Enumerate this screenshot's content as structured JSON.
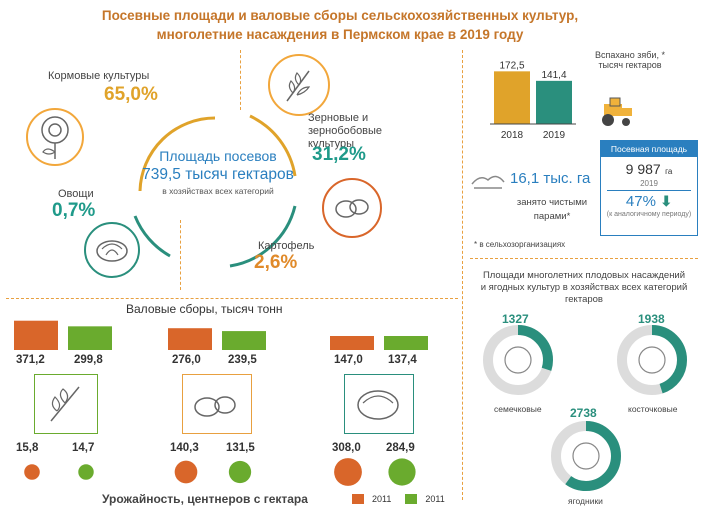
{
  "title_line1": "Посевные площади и валовые сборы сельскохозяйственных культур,",
  "title_line2": "многолетние насаждения в Пермском крае в 2019 году",
  "center": {
    "title": "Площадь посевов",
    "value": "739,5 тысяч гектаров",
    "note": "в хозяйствах всех категорий"
  },
  "categories": [
    {
      "label": "Кормовые культуры",
      "pct": "65,0%"
    },
    {
      "label": "Зерновые и зернобобовые культуры",
      "pct": "31,2%"
    },
    {
      "label": "Овощи",
      "pct": "0,7%"
    },
    {
      "label": "Картофель",
      "pct": "2,6%"
    }
  ],
  "plowed": {
    "label_line1": "Вспахано зяби, *",
    "label_line2": "тысяч гектаров",
    "years": [
      "2018",
      "2019"
    ],
    "values_text": [
      "172,5",
      "141,4"
    ]
  },
  "fallow": {
    "value": "16,1 тыс. га",
    "label_line1": "занято чистыми",
    "label_line2": "парами*"
  },
  "footnote": "* в сельхозорганизациях",
  "sown_box": {
    "header": "Посевная площадь",
    "value": "9 987",
    "unit": "га",
    "year": "2019",
    "pct": "47%",
    "note": "(к аналогичному периоду)"
  },
  "gross_title": "Валовые сборы, тысяч тонн",
  "yield_title": "Урожайность, центнеров с гектара",
  "legend": [
    "2011",
    "2011"
  ],
  "crops": [
    {
      "gross": [
        "371,2",
        "299,8"
      ],
      "yield": [
        "15,8",
        "14,7"
      ]
    },
    {
      "gross": [
        "276,0",
        "239,5"
      ],
      "yield": [
        "140,3",
        "131,5"
      ]
    },
    {
      "gross": [
        "147,0",
        "137,4"
      ],
      "yield": [
        "308,0",
        "284,9"
      ]
    }
  ],
  "perennial": {
    "title_line1": "Площади многолетних плодовых насаждений",
    "title_line2": "и ягодных культур в хозяйствах всех категорий",
    "title_line3": "гектаров",
    "items": [
      {
        "value": "1327",
        "label": "семечковые",
        "share": 0.3
      },
      {
        "value": "1938",
        "label": "косточковые",
        "share": 0.45
      },
      {
        "value": "2738",
        "label": "ягодники",
        "share": 0.6
      }
    ]
  },
  "chart_data": [
    {
      "type": "bar",
      "title": "Вспахано зяби, * тысяч гектаров",
      "categories": [
        "2018",
        "2019"
      ],
      "values": [
        172.5,
        141.4
      ]
    },
    {
      "type": "pie",
      "title": "Площадь посевов",
      "categories": [
        "Кормовые культуры",
        "Зерновые и зернобобовые культуры",
        "Овощи",
        "Картофель"
      ],
      "values": [
        65.0,
        31.2,
        0.7,
        2.6
      ]
    },
    {
      "type": "bar",
      "title": "Валовые сборы, тысяч тонн",
      "categories": [
        "1",
        "2",
        "3"
      ],
      "series": [
        {
          "name": "2011",
          "values": [
            371.2,
            276.0,
            147.0
          ]
        },
        {
          "name": "2011",
          "values": [
            299.8,
            239.5,
            137.4
          ]
        }
      ]
    },
    {
      "type": "scatter",
      "title": "Урожайность, центнеров с гектара",
      "categories": [
        "1",
        "2",
        "3"
      ],
      "series": [
        {
          "name": "2011",
          "values": [
            15.8,
            140.3,
            308.0
          ]
        },
        {
          "name": "2011",
          "values": [
            14.7,
            131.5,
            284.9
          ]
        }
      ]
    }
  ],
  "colors": {
    "orange": "#d9662a",
    "green": "#6aab2e",
    "teal": "#2a8f7d",
    "gold": "#e0a32a",
    "blue": "#2a7fbf"
  }
}
